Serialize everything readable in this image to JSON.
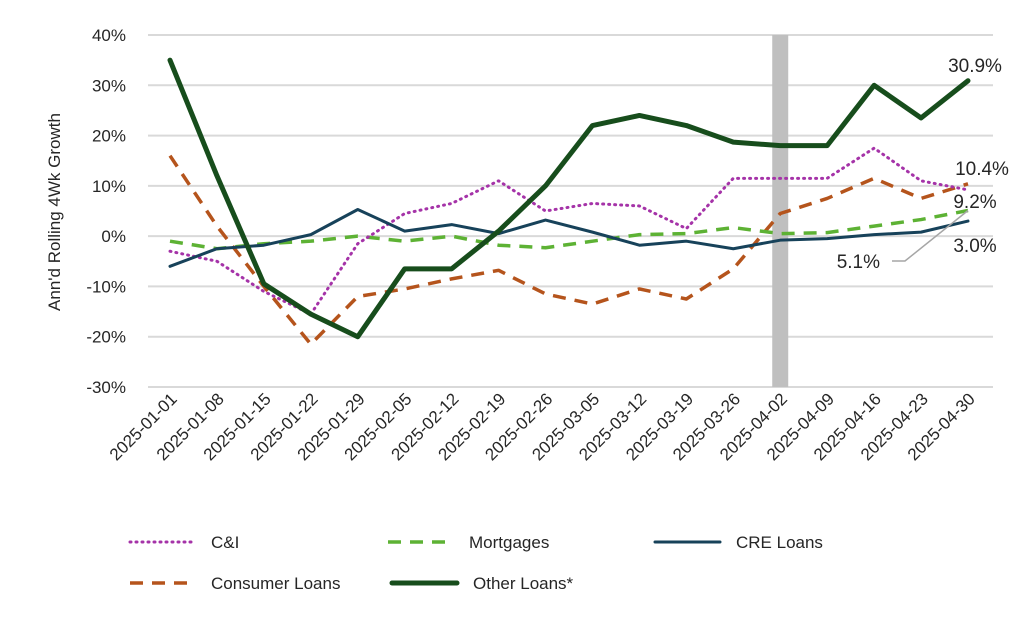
{
  "chart_data": {
    "type": "line",
    "title": "",
    "xlabel": "",
    "ylabel": "Ann'd Rolling 4Wk Growth",
    "ylim": [
      -30,
      40
    ],
    "yticks": [
      "-30%",
      "-20%",
      "-10%",
      "0%",
      "10%",
      "20%",
      "30%",
      "40%"
    ],
    "ytick_values": [
      -30,
      -20,
      -10,
      0,
      10,
      20,
      30,
      40
    ],
    "grid": true,
    "legend_position": "bottom",
    "x": [
      "2025-01-01",
      "2025-01-08",
      "2025-01-15",
      "2025-01-22",
      "2025-01-29",
      "2025-02-05",
      "2025-02-12",
      "2025-02-19",
      "2025-02-26",
      "2025-03-05",
      "2025-03-12",
      "2025-03-19",
      "2025-03-26",
      "2025-04-02",
      "2025-04-09",
      "2025-04-16",
      "2025-04-23",
      "2025-04-30"
    ],
    "highlight_category": "2025-04-02",
    "series": [
      {
        "name": "C&I",
        "color": "#a533a8",
        "style": "dotted",
        "values": [
          -3,
          -5,
          -11,
          -15.5,
          -1.5,
          4.5,
          6.5,
          11,
          5,
          6.5,
          6,
          1.5,
          11.5,
          11.5,
          11.5,
          17.5,
          11,
          9.2
        ],
        "end_label": "9.2%"
      },
      {
        "name": "Mortgages",
        "color": "#5db234",
        "style": "dashed",
        "values": [
          -1,
          -2.5,
          -1.5,
          -1,
          0,
          -1,
          0,
          -1.8,
          -2.3,
          -1,
          0.3,
          0.5,
          1.7,
          0.5,
          0.7,
          2,
          3.3,
          5.1
        ],
        "end_label": "5.1%"
      },
      {
        "name": "CRE Loans",
        "color": "#17425a",
        "style": "solid",
        "values": [
          -6,
          -2.5,
          -1.8,
          0.3,
          5.3,
          1,
          2.3,
          0.5,
          3.2,
          0.8,
          -1.8,
          -1,
          -2.5,
          -0.8,
          -0.5,
          0.3,
          0.8,
          3.0
        ],
        "end_label": "3.0%"
      },
      {
        "name": "Consumer Loans",
        "color": "#b5541c",
        "style": "dashed",
        "values": [
          16,
          2,
          -10,
          -21.5,
          -12,
          -10.5,
          -8.5,
          -6.8,
          -11.5,
          -13.5,
          -10.5,
          -12.5,
          -6.5,
          4.5,
          7.5,
          11.5,
          7.5,
          10.4
        ],
        "end_label": "10.4%"
      },
      {
        "name": "Other Loans*",
        "color": "#174d1c",
        "style": "thick",
        "values": [
          35,
          12,
          -9.5,
          -15.5,
          -20,
          -6.5,
          -6.5,
          1,
          10,
          22,
          24,
          22,
          18.7,
          18,
          18,
          30,
          23.5,
          30.9
        ],
        "end_label": "30.9%"
      }
    ]
  }
}
